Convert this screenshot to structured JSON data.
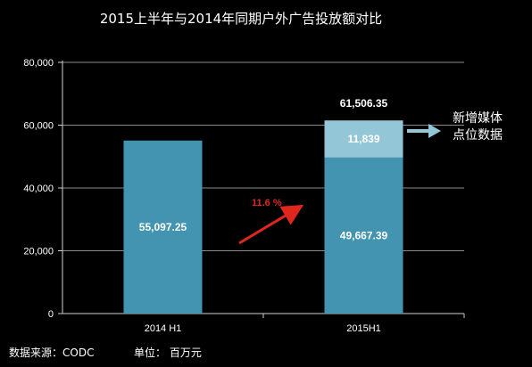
{
  "title": "2015上半年与2014年同期户外广告投放额对比",
  "footer": {
    "source": "数据来源：CODC",
    "unit": "单位：  百万元"
  },
  "note": [
    "新增媒体",
    "点位数据"
  ],
  "growth_label": "11.6 %",
  "colors": {
    "bar": "#4394b0",
    "bar_top": "#93c6d6",
    "bg": "#000000",
    "arrow": "#e0271f",
    "grid": "#8a8a8a"
  },
  "chart_data": {
    "type": "bar",
    "title": "2015上半年与2014年同期户外广告投放额对比",
    "categories": [
      "2014 H1",
      "2015H1"
    ],
    "series": [
      {
        "values": [
          55097.25,
          49667.39
        ],
        "labels": [
          "55,097.25",
          "49,667.39"
        ]
      },
      {
        "values": [
          0,
          11839
        ],
        "labels": [
          "",
          "11,839"
        ]
      }
    ],
    "totals": [
      null,
      "61,506.35"
    ],
    "ylim": [
      0,
      80000
    ],
    "yticks": [
      "0",
      "20,000",
      "40,000",
      "60,000",
      "80,000"
    ],
    "grid": true
  }
}
